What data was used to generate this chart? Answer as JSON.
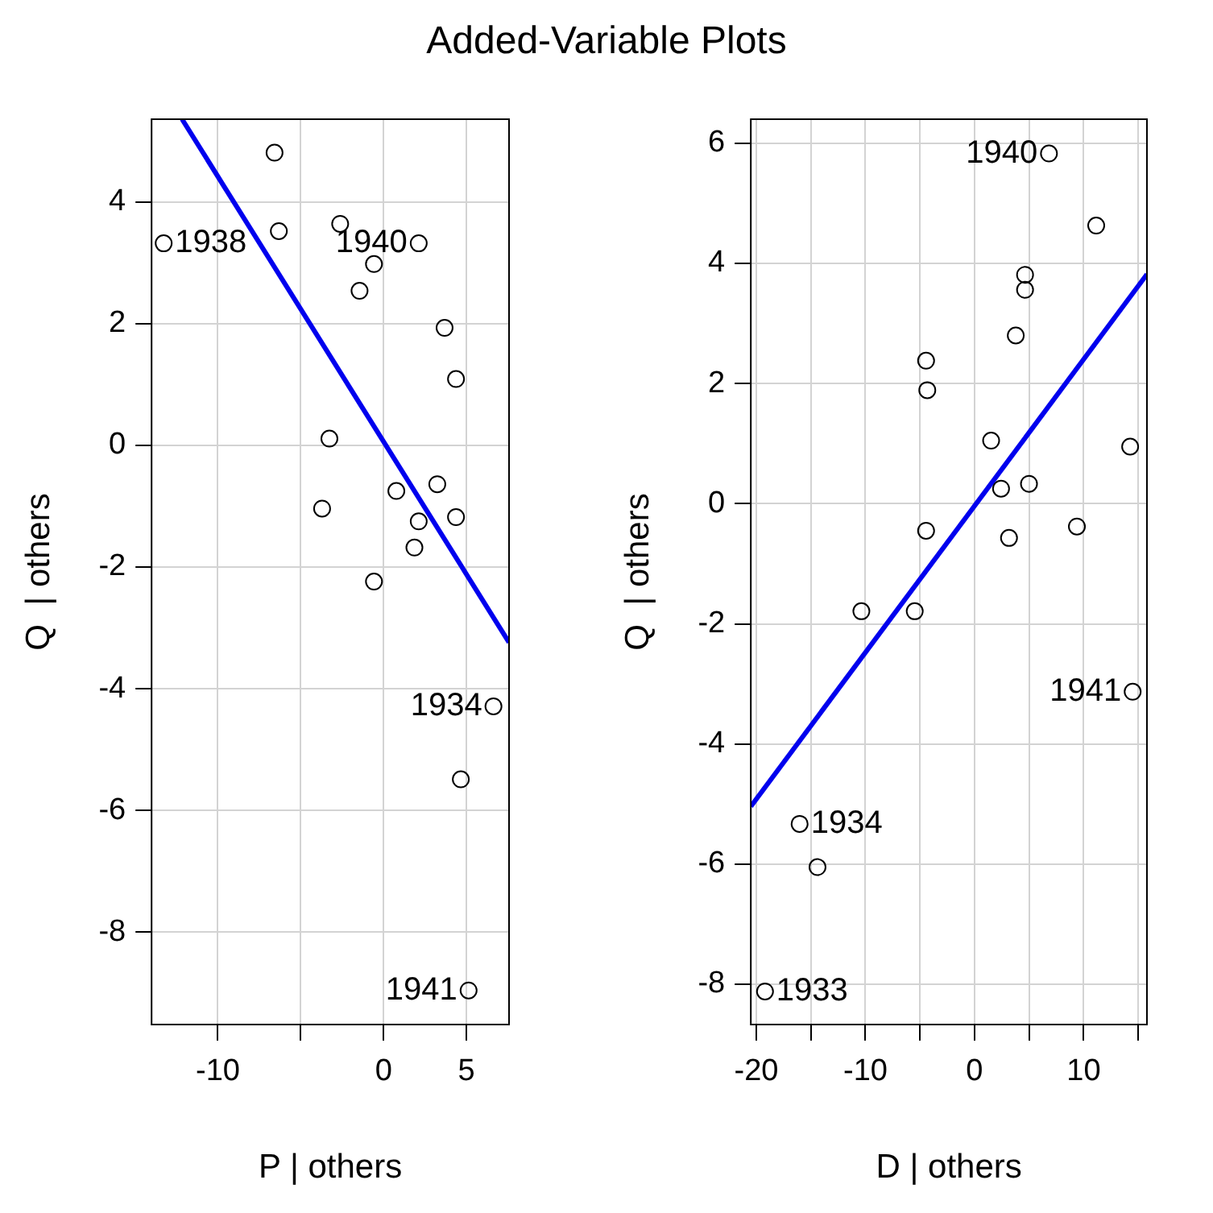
{
  "chart_data": [
    {
      "type": "scatter",
      "title": "Added-Variable Plots",
      "xlabel": "P | others",
      "ylabel": "Q  | others",
      "xlim": [
        -14.0,
        7.57
      ],
      "ylim": [
        -9.52,
        5.36
      ],
      "xticks": [
        -10,
        {
          "value": -5,
          "label": null
        },
        0,
        5
      ],
      "yticks": [
        -8,
        -6,
        -4,
        -2,
        0,
        2,
        4
      ],
      "grid": true,
      "legend": false,
      "series": [
        {
          "marker": "circle",
          "color": "#000000",
          "x": [
            -13.27,
            -6.58,
            -6.32,
            -2.62,
            2.12,
            -0.58,
            -1.45,
            3.68,
            4.37,
            -3.27,
            -3.71,
            0.77,
            3.24,
            2.12,
            4.37,
            1.86,
            -0.58,
            6.63,
            4.66,
            5.13
          ],
          "values": [
            3.32,
            4.81,
            3.52,
            3.64,
            3.32,
            2.98,
            2.54,
            1.93,
            1.09,
            0.11,
            -1.04,
            -0.75,
            -0.64,
            -1.25,
            -1.18,
            -1.68,
            -2.24,
            -4.29,
            -5.49,
            -8.96
          ]
        },
        {
          "type": "line",
          "marker": "none",
          "color": "#0000ee",
          "x": [
            -12.16,
            7.57
          ],
          "values": [
            5.36,
            -3.24
          ]
        }
      ],
      "annotations": [
        {
          "text": "1938",
          "x": -13.27,
          "y": 3.32
        },
        {
          "text": "1940",
          "x": 2.12,
          "y": 3.32
        },
        {
          "text": "1934",
          "x": 6.63,
          "y": -4.29
        },
        {
          "text": "1941",
          "x": 5.13,
          "y": -8.96
        }
      ]
    },
    {
      "type": "scatter",
      "xlabel": "D | others",
      "ylabel": "Q  | others",
      "xlim": [
        -20.5,
        15.8
      ],
      "ylim": [
        -8.67,
        6.4
      ],
      "xticks": [
        -20,
        {
          "value": -15,
          "label": null
        },
        -10,
        {
          "value": -5,
          "label": null
        },
        0,
        {
          "value": 5,
          "label": null
        },
        10,
        {
          "value": 15,
          "label": null
        }
      ],
      "yticks": [
        -8,
        -6,
        -4,
        -2,
        0,
        2,
        4,
        6
      ],
      "grid": true,
      "legend": false,
      "series": [
        {
          "marker": "circle",
          "color": "#000000",
          "x": [
            6.82,
            11.15,
            4.63,
            4.63,
            3.78,
            -4.44,
            -4.33,
            1.52,
            14.26,
            2.43,
            4.99,
            -4.44,
            3.16,
            9.38,
            -10.37,
            -5.48,
            14.49,
            -16.03,
            -14.39,
            -19.2
          ],
          "values": [
            5.83,
            4.63,
            3.81,
            3.56,
            2.8,
            2.38,
            1.89,
            1.05,
            0.95,
            0.25,
            0.33,
            -0.45,
            -0.57,
            -0.38,
            -1.79,
            -1.79,
            -3.13,
            -5.33,
            -6.05,
            -8.12
          ]
        },
        {
          "type": "line",
          "marker": "none",
          "color": "#0000ee",
          "x": [
            -20.5,
            15.8
          ],
          "values": [
            -5.04,
            3.82
          ]
        }
      ],
      "annotations": [
        {
          "text": "1940",
          "x": 6.82,
          "y": 5.83
        },
        {
          "text": "1941",
          "x": 14.49,
          "y": -3.13
        },
        {
          "text": "1934",
          "x": -16.03,
          "y": -5.33
        },
        {
          "text": "1933",
          "x": -19.2,
          "y": -8.12
        }
      ]
    }
  ]
}
